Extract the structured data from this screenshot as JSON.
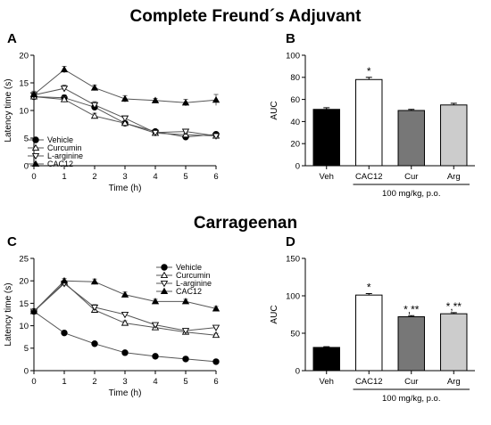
{
  "sections": [
    {
      "title": "Complete Freund´s Adjuvant"
    },
    {
      "title": "Carrageenan"
    }
  ],
  "chart_data": [
    {
      "panel": "A",
      "type": "line",
      "xlabel": "Time (h)",
      "ylabel": "Latency time (s)",
      "x": [
        0,
        1,
        2,
        3,
        4,
        5,
        6
      ],
      "xlim": [
        0,
        6
      ],
      "ylim": [
        0,
        20
      ],
      "xticks": [
        "0",
        "1",
        "2",
        "3",
        "4",
        "5",
        "6"
      ],
      "yticks": [
        "0",
        "5",
        "10",
        "15",
        "20"
      ],
      "legend_position": "bottom-left",
      "series": [
        {
          "name": "Vehicle",
          "marker": "circle-filled",
          "values": [
            12.5,
            12.3,
            10.6,
            7.7,
            6.2,
            5.2,
            5.7
          ],
          "errors": [
            0.4,
            0.5,
            0.5,
            0.3,
            0.3,
            0.3,
            0.3
          ]
        },
        {
          "name": "Curcumin",
          "marker": "triangle-up-open",
          "values": [
            12.5,
            12.0,
            9.0,
            7.7,
            5.9,
            5.6,
            5.4
          ],
          "errors": [
            0.5,
            0.5,
            0.5,
            0.4,
            0.3,
            0.3,
            0.3
          ]
        },
        {
          "name": "L-arginine",
          "marker": "triangle-down-open",
          "values": [
            12.8,
            14.0,
            11.0,
            8.6,
            6.0,
            6.2,
            5.4
          ],
          "errors": [
            0.5,
            0.6,
            0.6,
            0.4,
            0.3,
            0.3,
            0.3
          ]
        },
        {
          "name": "CAC12",
          "marker": "triangle-up-filled",
          "values": [
            12.9,
            17.4,
            14.1,
            12.1,
            11.8,
            11.4,
            11.9
          ],
          "errors": [
            0.6,
            0.6,
            0.5,
            0.6,
            0.4,
            0.6,
            1.0
          ]
        }
      ]
    },
    {
      "panel": "B",
      "type": "bar",
      "ylabel": "AUC",
      "categories": [
        "Veh",
        "CAC12",
        "Cur",
        "Arg"
      ],
      "values": [
        51,
        78,
        50,
        55
      ],
      "errors": [
        1.5,
        2.0,
        1.0,
        1.5
      ],
      "colors": [
        "#000000",
        "#ffffff",
        "#777777",
        "#cccccc"
      ],
      "significance": [
        "",
        "*",
        "",
        ""
      ],
      "ylim": [
        0,
        100
      ],
      "yticks": [
        "0",
        "20",
        "40",
        "60",
        "80",
        "100"
      ],
      "bracket_label": "100 mg/kg, p.o."
    },
    {
      "panel": "C",
      "type": "line",
      "xlabel": "Time (h)",
      "ylabel": "Latency time (s)",
      "x": [
        0,
        1,
        2,
        3,
        4,
        5,
        6
      ],
      "xlim": [
        0,
        6
      ],
      "ylim": [
        0,
        25
      ],
      "xticks": [
        "0",
        "1",
        "2",
        "3",
        "4",
        "5",
        "6"
      ],
      "yticks": [
        "0",
        "5",
        "10",
        "15",
        "20",
        "25"
      ],
      "legend_position": "top-right",
      "series": [
        {
          "name": "Vehicle",
          "marker": "circle-filled",
          "values": [
            13.2,
            8.4,
            6.0,
            4.0,
            3.2,
            2.6,
            2.0
          ],
          "errors": [
            0.4,
            0.3,
            0.3,
            0.2,
            0.2,
            0.2,
            0.2
          ]
        },
        {
          "name": "Curcumin",
          "marker": "triangle-up-open",
          "values": [
            13.2,
            19.6,
            13.5,
            10.6,
            9.6,
            8.6,
            7.9
          ],
          "errors": [
            0.5,
            0.5,
            0.6,
            0.5,
            0.4,
            0.4,
            0.4
          ]
        },
        {
          "name": "L-arginine",
          "marker": "triangle-down-open",
          "values": [
            13.2,
            19.4,
            14.1,
            12.5,
            10.2,
            8.9,
            9.6
          ],
          "errors": [
            0.5,
            0.5,
            0.6,
            0.5,
            0.4,
            0.4,
            0.4
          ]
        },
        {
          "name": "CAC12",
          "marker": "triangle-up-filled",
          "values": [
            13.2,
            20.0,
            19.8,
            16.9,
            15.4,
            15.4,
            13.8
          ],
          "errors": [
            0.5,
            0.5,
            0.6,
            0.6,
            0.5,
            0.5,
            0.5
          ]
        }
      ]
    },
    {
      "panel": "D",
      "type": "bar",
      "ylabel": "AUC",
      "categories": [
        "Veh",
        "CAC12",
        "Cur",
        "Arg"
      ],
      "values": [
        31,
        101,
        72,
        76
      ],
      "errors": [
        1.0,
        2.0,
        1.5,
        1.5
      ],
      "colors": [
        "#000000",
        "#ffffff",
        "#777777",
        "#cccccc"
      ],
      "significance": [
        "",
        "*",
        "*,**",
        "*,**"
      ],
      "ylim": [
        0,
        150
      ],
      "yticks": [
        "0",
        "50",
        "100",
        "150"
      ],
      "bracket_label": "100 mg/kg, p.o."
    }
  ]
}
